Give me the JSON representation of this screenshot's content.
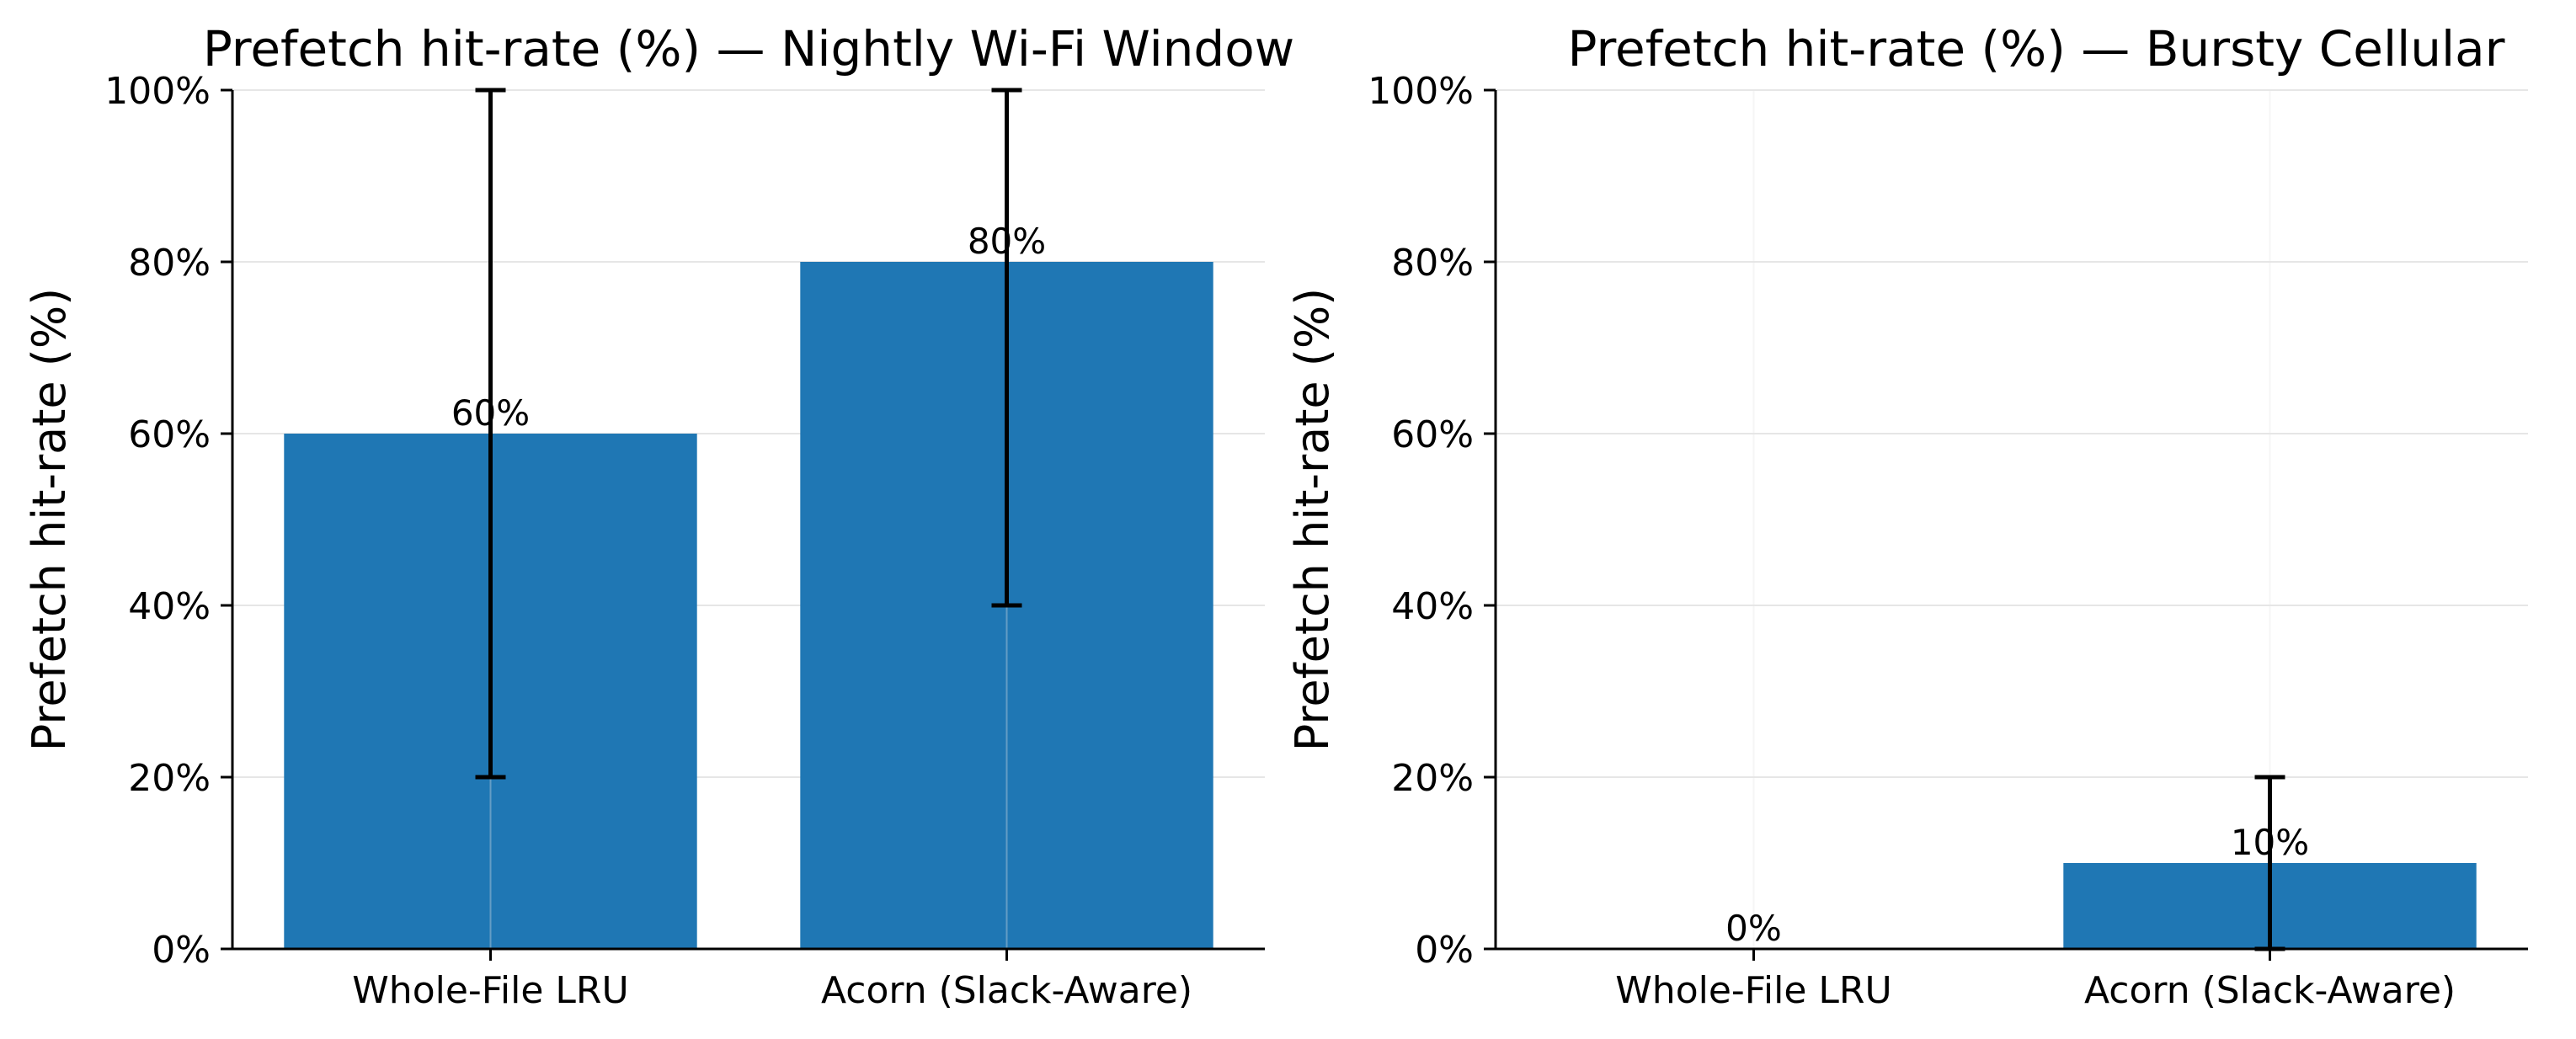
{
  "colors": {
    "bar": "#1f77b4",
    "errorbar": "#000000",
    "grid": "#e6e6e6",
    "axis": "#000000"
  },
  "chart_data": [
    {
      "type": "bar",
      "title": "Prefetch hit-rate (%) — Nightly Wi-Fi Window",
      "xlabel": "",
      "ylabel": "Prefetch hit-rate (%)",
      "categories": [
        "Whole-File LRU",
        "Acorn (Slack-Aware)"
      ],
      "values": [
        60,
        80
      ],
      "error_low": [
        20,
        40
      ],
      "error_high": [
        100,
        100
      ],
      "data_labels": [
        "60%",
        "80%"
      ],
      "ylim": [
        0,
        100
      ],
      "yticks": [
        0,
        20,
        40,
        60,
        80,
        100
      ],
      "ytick_labels": [
        "0%",
        "20%",
        "40%",
        "60%",
        "80%",
        "100%"
      ],
      "grid": true,
      "legend": "none"
    },
    {
      "type": "bar",
      "title": "Prefetch hit-rate (%) — Bursty Cellular",
      "xlabel": "",
      "ylabel": "Prefetch hit-rate (%)",
      "categories": [
        "Whole-File LRU",
        "Acorn (Slack-Aware)"
      ],
      "values": [
        0,
        10
      ],
      "error_low": [
        0,
        0
      ],
      "error_high": [
        0,
        20
      ],
      "data_labels": [
        "0%",
        "10%"
      ],
      "ylim": [
        0,
        100
      ],
      "yticks": [
        0,
        20,
        40,
        60,
        80,
        100
      ],
      "ytick_labels": [
        "0%",
        "20%",
        "40%",
        "60%",
        "80%",
        "100%"
      ],
      "grid": true,
      "legend": "none"
    }
  ]
}
